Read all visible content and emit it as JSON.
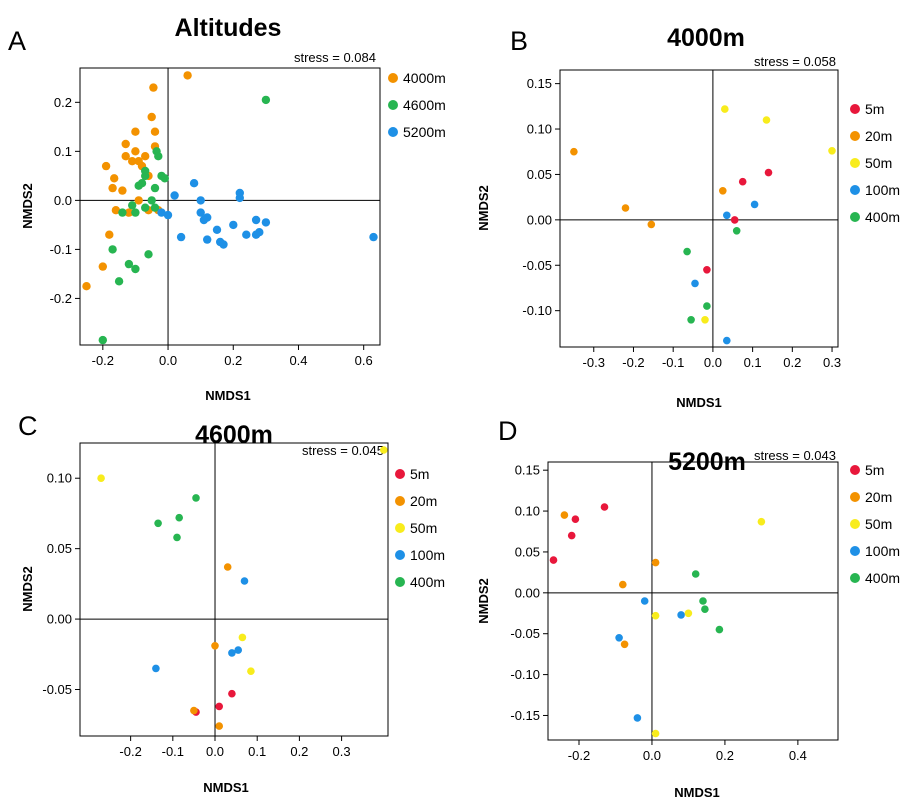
{
  "chart_data": [
    {
      "type": "scatter",
      "panel_letter": "A",
      "title": "Altitudes",
      "stress": "stress = 0.084",
      "xlabel": "NMDS1",
      "ylabel": "NMDS2",
      "xlim": [
        -0.27,
        0.65
      ],
      "ylim": [
        -0.295,
        0.27
      ],
      "xticks": [
        -0.2,
        0.0,
        0.2,
        0.4,
        0.6
      ],
      "xtick_labels": [
        "-0.2",
        "0.0",
        "0.2",
        "0.4",
        "0.6"
      ],
      "yticks": [
        -0.2,
        -0.1,
        0.0,
        0.1,
        0.2
      ],
      "ytick_labels": [
        "-0.2",
        "-0.1",
        "0.0",
        "0.1",
        "0.2"
      ],
      "zero_lines": true,
      "legend_position": "right",
      "series": [
        {
          "name": "4000m",
          "color": "#f39200",
          "points": [
            [
              -0.25,
              -0.175
            ],
            [
              -0.2,
              -0.135
            ],
            [
              -0.18,
              -0.07
            ],
            [
              -0.17,
              0.025
            ],
            [
              -0.165,
              0.045
            ],
            [
              -0.19,
              0.07
            ],
            [
              -0.16,
              -0.02
            ],
            [
              -0.14,
              0.02
            ],
            [
              -0.13,
              0.09
            ],
            [
              -0.13,
              0.115
            ],
            [
              -0.12,
              -0.025
            ],
            [
              -0.11,
              0.08
            ],
            [
              -0.1,
              0.1
            ],
            [
              -0.09,
              0.08
            ],
            [
              -0.09,
              0.0
            ],
            [
              -0.08,
              0.07
            ],
            [
              -0.07,
              0.09
            ],
            [
              -0.06,
              0.05
            ],
            [
              -0.05,
              0.17
            ],
            [
              -0.04,
              0.14
            ],
            [
              -0.045,
              0.23
            ],
            [
              -0.04,
              0.11
            ],
            [
              -0.03,
              -0.02
            ],
            [
              -0.06,
              -0.02
            ],
            [
              -0.1,
              0.14
            ],
            [
              0.06,
              0.255
            ]
          ]
        },
        {
          "name": "4600m",
          "color": "#27b551",
          "points": [
            [
              -0.2,
              -0.285
            ],
            [
              -0.17,
              -0.1
            ],
            [
              -0.15,
              -0.165
            ],
            [
              -0.14,
              -0.025
            ],
            [
              -0.12,
              -0.13
            ],
            [
              -0.1,
              -0.14
            ],
            [
              -0.1,
              -0.025
            ],
            [
              -0.09,
              0.03
            ],
            [
              -0.08,
              0.035
            ],
            [
              -0.07,
              0.05
            ],
            [
              -0.07,
              0.06
            ],
            [
              -0.07,
              -0.015
            ],
            [
              -0.06,
              -0.11
            ],
            [
              -0.05,
              0.0
            ],
            [
              -0.04,
              0.025
            ],
            [
              -0.035,
              0.1
            ],
            [
              -0.03,
              0.09
            ],
            [
              -0.02,
              0.05
            ],
            [
              -0.01,
              0.045
            ],
            [
              -0.04,
              -0.015
            ],
            [
              -0.11,
              -0.01
            ],
            [
              0.3,
              0.205
            ]
          ]
        },
        {
          "name": "5200m",
          "color": "#1e90e6",
          "points": [
            [
              -0.02,
              -0.025
            ],
            [
              0.0,
              -0.03
            ],
            [
              0.02,
              0.01
            ],
            [
              0.04,
              -0.075
            ],
            [
              0.08,
              0.035
            ],
            [
              0.1,
              -0.025
            ],
            [
              0.1,
              0.0
            ],
            [
              0.11,
              -0.04
            ],
            [
              0.12,
              -0.035
            ],
            [
              0.12,
              -0.08
            ],
            [
              0.15,
              -0.06
            ],
            [
              0.16,
              -0.085
            ],
            [
              0.17,
              -0.09
            ],
            [
              0.2,
              -0.05
            ],
            [
              0.22,
              0.015
            ],
            [
              0.22,
              0.005
            ],
            [
              0.24,
              -0.07
            ],
            [
              0.27,
              -0.04
            ],
            [
              0.27,
              -0.07
            ],
            [
              0.28,
              -0.065
            ],
            [
              0.3,
              -0.045
            ],
            [
              0.63,
              -0.075
            ]
          ]
        }
      ]
    },
    {
      "type": "scatter",
      "panel_letter": "B",
      "title": "4000m",
      "stress": "stress = 0.058",
      "xlabel": "NMDS1",
      "ylabel": "NMDS2",
      "xlim": [
        -0.385,
        0.315
      ],
      "ylim": [
        -0.14,
        0.165
      ],
      "xticks": [
        -0.3,
        -0.2,
        -0.1,
        0.0,
        0.1,
        0.2,
        0.3
      ],
      "xtick_labels": [
        "-0.3",
        "-0.2",
        "-0.1",
        "0.0",
        "0.1",
        "0.2",
        "0.3"
      ],
      "yticks": [
        -0.1,
        -0.05,
        0.0,
        0.05,
        0.1,
        0.15
      ],
      "ytick_labels": [
        "-0.10",
        "-0.05",
        "0.00",
        "0.05",
        "0.10",
        "0.15"
      ],
      "zero_lines": true,
      "legend_position": "right",
      "series": [
        {
          "name": "5m",
          "color": "#e8173b",
          "points": [
            [
              -0.015,
              -0.055
            ],
            [
              0.055,
              0.0
            ],
            [
              0.075,
              0.042
            ],
            [
              0.14,
              0.052
            ]
          ]
        },
        {
          "name": "20m",
          "color": "#f39200",
          "points": [
            [
              -0.35,
              0.075
            ],
            [
              -0.22,
              0.013
            ],
            [
              -0.155,
              -0.005
            ],
            [
              0.025,
              0.032
            ]
          ]
        },
        {
          "name": "50m",
          "color": "#f8ec1c",
          "points": [
            [
              0.03,
              0.122
            ],
            [
              0.135,
              0.11
            ],
            [
              0.3,
              0.076
            ],
            [
              -0.02,
              -0.11
            ]
          ]
        },
        {
          "name": "100m",
          "color": "#1e90e6",
          "points": [
            [
              -0.045,
              -0.07
            ],
            [
              0.035,
              0.005
            ],
            [
              0.105,
              0.017
            ],
            [
              0.035,
              -0.133
            ]
          ]
        },
        {
          "name": "400m",
          "color": "#27b551",
          "points": [
            [
              -0.065,
              -0.035
            ],
            [
              -0.055,
              -0.11
            ],
            [
              -0.015,
              -0.095
            ],
            [
              0.06,
              -0.012
            ]
          ]
        }
      ]
    },
    {
      "type": "scatter",
      "panel_letter": "C",
      "title": "4600m",
      "stress": "stress = 0.045",
      "xlabel": "NMDS1",
      "ylabel": "NMDS2",
      "xlim": [
        -0.32,
        0.41
      ],
      "ylim": [
        -0.083,
        0.125
      ],
      "xticks": [
        -0.2,
        -0.1,
        0.0,
        0.1,
        0.2,
        0.3
      ],
      "xtick_labels": [
        "-0.2",
        "-0.1",
        "0.0",
        "0.1",
        "0.2",
        "0.3"
      ],
      "yticks": [
        -0.05,
        0.0,
        0.05,
        0.1
      ],
      "ytick_labels": [
        "-0.05",
        "0.00",
        "0.05",
        "0.10"
      ],
      "zero_lines": true,
      "legend_position": "right",
      "series": [
        {
          "name": "5m",
          "color": "#e8173b",
          "points": [
            [
              -0.045,
              -0.066
            ],
            [
              0.01,
              -0.062
            ],
            [
              0.04,
              -0.053
            ]
          ]
        },
        {
          "name": "20m",
          "color": "#f39200",
          "points": [
            [
              -0.05,
              -0.065
            ],
            [
              0.0,
              -0.019
            ],
            [
              0.03,
              0.037
            ],
            [
              0.01,
              -0.076
            ]
          ]
        },
        {
          "name": "50m",
          "color": "#f8ec1c",
          "points": [
            [
              -0.27,
              0.1
            ],
            [
              0.4,
              0.12
            ],
            [
              0.065,
              -0.013
            ],
            [
              0.085,
              -0.037
            ]
          ]
        },
        {
          "name": "100m",
          "color": "#1e90e6",
          "points": [
            [
              -0.14,
              -0.035
            ],
            [
              0.04,
              -0.024
            ],
            [
              0.055,
              -0.022
            ],
            [
              0.07,
              0.027
            ]
          ]
        },
        {
          "name": "400m",
          "color": "#27b551",
          "points": [
            [
              -0.135,
              0.068
            ],
            [
              -0.09,
              0.058
            ],
            [
              -0.085,
              0.072
            ],
            [
              -0.045,
              0.086
            ]
          ]
        }
      ]
    },
    {
      "type": "scatter",
      "panel_letter": "D",
      "title": "5200m",
      "stress": "stress = 0.043",
      "xlabel": "NMDS1",
      "ylabel": "NMDS2",
      "xlim": [
        -0.285,
        0.51
      ],
      "ylim": [
        -0.18,
        0.16
      ],
      "xticks": [
        -0.2,
        0.0,
        0.2,
        0.4
      ],
      "xtick_labels": [
        "-0.2",
        "0.0",
        "0.2",
        "0.4"
      ],
      "yticks": [
        -0.15,
        -0.1,
        -0.05,
        0.0,
        0.05,
        0.1,
        0.15
      ],
      "ytick_labels": [
        "-0.15",
        "-0.10",
        "-0.05",
        "0.00",
        "0.05",
        "0.10",
        "0.15"
      ],
      "zero_lines": true,
      "legend_position": "right",
      "series": [
        {
          "name": "5m",
          "color": "#e8173b",
          "points": [
            [
              -0.27,
              0.04
            ],
            [
              -0.22,
              0.07
            ],
            [
              -0.21,
              0.09
            ],
            [
              -0.13,
              0.105
            ]
          ]
        },
        {
          "name": "20m",
          "color": "#f39200",
          "points": [
            [
              -0.24,
              0.095
            ],
            [
              -0.08,
              0.01
            ],
            [
              0.01,
              0.037
            ],
            [
              -0.075,
              -0.063
            ]
          ]
        },
        {
          "name": "50m",
          "color": "#f8ec1c",
          "points": [
            [
              0.01,
              -0.028
            ],
            [
              0.1,
              -0.025
            ],
            [
              0.3,
              0.087
            ],
            [
              0.01,
              -0.172
            ]
          ]
        },
        {
          "name": "100m",
          "color": "#1e90e6",
          "points": [
            [
              -0.09,
              -0.055
            ],
            [
              -0.02,
              -0.01
            ],
            [
              0.08,
              -0.027
            ],
            [
              -0.04,
              -0.153
            ]
          ]
        },
        {
          "name": "400m",
          "color": "#27b551",
          "points": [
            [
              0.12,
              0.023
            ],
            [
              0.14,
              -0.01
            ],
            [
              0.145,
              -0.02
            ],
            [
              0.185,
              -0.045
            ]
          ]
        }
      ]
    }
  ]
}
